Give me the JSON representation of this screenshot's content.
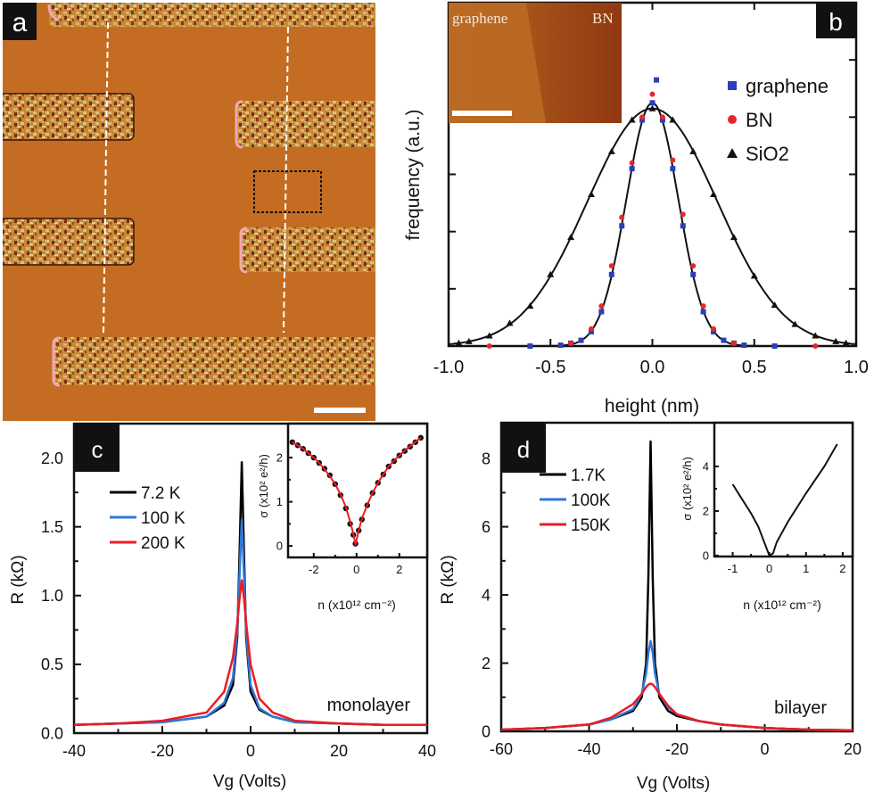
{
  "panel_a": {
    "label": "a",
    "description_colors": {
      "substrate": "#c46d22",
      "electrode": "#c9903a",
      "edge": "#f1a7b5"
    }
  },
  "chart_data": [
    {
      "id": "b",
      "type": "scatter",
      "panel_label": "b",
      "xlabel": "height (nm)",
      "ylabel": "frequency (a.u.)",
      "xlim": [
        -1.0,
        1.0
      ],
      "ylim": [
        0,
        1.2
      ],
      "x_ticks": [
        "-1.0",
        "-0.5",
        "0.0",
        "0.5",
        "1.0"
      ],
      "x_tick_values": [
        -1.0,
        -0.5,
        0.0,
        0.5,
        1.0
      ],
      "legend_position": "top-right",
      "inset_image": {
        "labels": [
          "graphene",
          "BN"
        ],
        "colors": {
          "graphene": "#b5621f",
          "BN": "#8a3310"
        }
      },
      "series": [
        {
          "name": "graphene",
          "marker": "square",
          "color": "#2b3fb8",
          "x": [
            -0.6,
            -0.45,
            -0.4,
            -0.35,
            -0.3,
            -0.25,
            -0.2,
            -0.15,
            -0.1,
            -0.05,
            0.0,
            0.02,
            0.05,
            0.1,
            0.15,
            0.2,
            0.25,
            0.3,
            0.35,
            0.4,
            0.45,
            0.6
          ],
          "y": [
            0.0,
            0.003,
            0.01,
            0.02,
            0.05,
            0.12,
            0.25,
            0.42,
            0.62,
            0.79,
            0.85,
            0.93,
            0.79,
            0.62,
            0.42,
            0.25,
            0.12,
            0.05,
            0.02,
            0.01,
            0.003,
            0.0
          ]
        },
        {
          "name": "BN",
          "marker": "circle",
          "color": "#e8262b",
          "x": [
            -0.8,
            -0.4,
            -0.3,
            -0.25,
            -0.2,
            -0.15,
            -0.1,
            -0.05,
            0.0,
            0.05,
            0.1,
            0.15,
            0.2,
            0.25,
            0.3,
            0.4,
            0.8
          ],
          "y": [
            0.0,
            0.01,
            0.06,
            0.14,
            0.28,
            0.45,
            0.64,
            0.8,
            0.88,
            0.8,
            0.65,
            0.46,
            0.28,
            0.14,
            0.06,
            0.01,
            0.0
          ]
        },
        {
          "name": "SiO2",
          "marker": "triangle",
          "color": "#111111",
          "x": [
            -0.95,
            -0.9,
            -0.8,
            -0.7,
            -0.6,
            -0.5,
            -0.4,
            -0.3,
            -0.2,
            -0.1,
            0.0,
            0.1,
            0.2,
            0.3,
            0.4,
            0.5,
            0.6,
            0.7,
            0.8,
            0.9,
            0.95
          ],
          "y": [
            0.01,
            0.016,
            0.036,
            0.08,
            0.14,
            0.25,
            0.38,
            0.53,
            0.68,
            0.79,
            0.83,
            0.79,
            0.68,
            0.53,
            0.38,
            0.245,
            0.143,
            0.076,
            0.036,
            0.016,
            0.01
          ]
        }
      ],
      "fits": [
        {
          "series": "graphene/BN",
          "center": 0.0,
          "sigma": 0.127,
          "amplitude": 0.85
        },
        {
          "series": "SiO2",
          "center": 0.0,
          "sigma": 0.32,
          "amplitude": 0.83
        }
      ]
    },
    {
      "id": "c",
      "type": "line",
      "panel_label": "c",
      "xlabel": "Vg (Volts)",
      "ylabel": "R (kΩ)",
      "annotation": "monolayer",
      "xlim": [
        -40,
        40
      ],
      "ylim": [
        0,
        2.25
      ],
      "x_ticks": [
        "-40",
        "-20",
        "0",
        "20",
        "40"
      ],
      "x_tick_values": [
        -40,
        -20,
        0,
        20,
        40
      ],
      "y_ticks": [
        "0.0",
        "0.5",
        "1.0",
        "1.5",
        "2.0"
      ],
      "y_tick_values": [
        0,
        0.5,
        1.0,
        1.5,
        2.0
      ],
      "legend_position": "top-left",
      "x": [
        -40,
        -30,
        -20,
        -10,
        -6,
        -4,
        -3,
        -2.5,
        -2,
        -1.5,
        -1,
        0,
        2,
        5,
        10,
        20,
        30,
        40
      ],
      "series": [
        {
          "name": "7.2 K",
          "color": "#000000",
          "values": [
            0.06,
            0.07,
            0.08,
            0.12,
            0.2,
            0.35,
            0.7,
            1.3,
            1.97,
            1.3,
            0.7,
            0.3,
            0.17,
            0.12,
            0.08,
            0.07,
            0.06,
            0.06
          ]
        },
        {
          "name": "100 K",
          "color": "#2f78d8",
          "values": [
            0.06,
            0.07,
            0.08,
            0.12,
            0.22,
            0.4,
            0.75,
            1.15,
            1.55,
            1.15,
            0.75,
            0.35,
            0.18,
            0.12,
            0.08,
            0.07,
            0.06,
            0.06
          ]
        },
        {
          "name": "200 K",
          "color": "#ec1c24",
          "values": [
            0.06,
            0.07,
            0.09,
            0.15,
            0.3,
            0.55,
            0.8,
            0.98,
            1.11,
            0.98,
            0.8,
            0.5,
            0.25,
            0.15,
            0.09,
            0.07,
            0.06,
            0.06
          ]
        }
      ],
      "inset": {
        "type": "scatter",
        "xlabel": "n (x10¹² cm⁻²)",
        "ylabel": "σ (x10² e²/h)",
        "xlim": [
          -3.2,
          3.3
        ],
        "ylim": [
          -0.26,
          2.77
        ],
        "x_ticks": [
          "-2",
          "0",
          "2"
        ],
        "x_tick_values": [
          -2,
          0,
          2
        ],
        "y_ticks": [
          "0",
          "1",
          "2"
        ],
        "y_tick_values": [
          0,
          1,
          2
        ],
        "x": [
          -3,
          -2.75,
          -2.5,
          -2.25,
          -2,
          -1.75,
          -1.5,
          -1.25,
          -1,
          -0.75,
          -0.5,
          -0.3,
          -0.15,
          -0.05,
          0.1,
          0.25,
          0.5,
          0.75,
          1,
          1.25,
          1.5,
          1.75,
          2,
          2.25,
          2.5,
          2.75,
          3
        ],
        "series": [
          {
            "name": "data",
            "marker": "circle",
            "color": "#111111",
            "values": [
              2.35,
              2.28,
              2.2,
              2.1,
              2.0,
              1.88,
              1.75,
              1.6,
              1.4,
              1.15,
              0.85,
              0.5,
              0.25,
              0.05,
              0.35,
              0.6,
              0.92,
              1.2,
              1.43,
              1.62,
              1.8,
              1.92,
              2.05,
              2.15,
              2.25,
              2.35,
              2.45
            ]
          },
          {
            "name": "fit",
            "marker": "line",
            "color": "#ec1c24",
            "values": [
              2.35,
              2.28,
              2.2,
              2.1,
              2.0,
              1.88,
              1.74,
              1.58,
              1.4,
              1.17,
              0.88,
              0.55,
              0.28,
              0.02,
              0.35,
              0.62,
              0.93,
              1.2,
              1.43,
              1.62,
              1.8,
              1.93,
              2.05,
              2.16,
              2.26,
              2.36,
              2.45
            ]
          }
        ]
      }
    },
    {
      "id": "d",
      "type": "line",
      "panel_label": "d",
      "xlabel": "Vg (Volts)",
      "ylabel": "R (kΩ)",
      "annotation": "bilayer",
      "xlim": [
        -60,
        20
      ],
      "ylim": [
        0,
        9.05
      ],
      "x_ticks": [
        "-60",
        "-40",
        "-20",
        "0",
        "20"
      ],
      "x_tick_values": [
        -60,
        -40,
        -20,
        0,
        20
      ],
      "y_ticks": [
        "0",
        "2",
        "4",
        "6",
        "8"
      ],
      "y_tick_values": [
        0,
        2,
        4,
        6,
        8
      ],
      "legend_position": "top-left",
      "x": [
        -60,
        -50,
        -40,
        -35,
        -30,
        -28,
        -27,
        -26.5,
        -26,
        -25.5,
        -25,
        -24,
        -22,
        -20,
        -15,
        -10,
        0,
        10,
        20
      ],
      "series": [
        {
          "name": "1.7K",
          "color": "#000000",
          "values": [
            0.05,
            0.1,
            0.2,
            0.35,
            0.6,
            1.0,
            2.0,
            4.5,
            8.5,
            4.5,
            2.0,
            1.0,
            0.6,
            0.45,
            0.3,
            0.2,
            0.1,
            0.05,
            0.03
          ]
        },
        {
          "name": "100K",
          "color": "#2f78d8",
          "values": [
            0.05,
            0.1,
            0.2,
            0.35,
            0.65,
            1.1,
            1.7,
            2.3,
            2.65,
            2.3,
            1.7,
            1.1,
            0.7,
            0.5,
            0.3,
            0.2,
            0.1,
            0.05,
            0.03
          ]
        },
        {
          "name": "150K",
          "color": "#ec1c24",
          "values": [
            0.05,
            0.1,
            0.2,
            0.4,
            0.8,
            1.1,
            1.3,
            1.37,
            1.4,
            1.37,
            1.3,
            1.1,
            0.75,
            0.5,
            0.3,
            0.2,
            0.1,
            0.05,
            0.03
          ]
        }
      ],
      "inset": {
        "type": "line",
        "xlabel": "n (x10¹² cm⁻²)",
        "ylabel": "σ (x10² e²/h)",
        "xlim": [
          -1.5,
          2.27
        ],
        "ylim": [
          -0.04,
          5.96
        ],
        "x_ticks": [
          "-1",
          "0",
          "1",
          "2"
        ],
        "x_tick_values": [
          -1,
          0,
          1,
          2
        ],
        "y_ticks": [
          "0",
          "2",
          "4"
        ],
        "y_tick_values": [
          0,
          2,
          4
        ],
        "x": [
          -1,
          -0.75,
          -0.5,
          -0.3,
          -0.15,
          0,
          0.1,
          0.2,
          0.5,
          1,
          1.5,
          1.85
        ],
        "series": [
          {
            "name": "data",
            "marker": "line",
            "color": "#111111",
            "values": [
              3.2,
              2.55,
              1.9,
              1.3,
              0.65,
              0,
              0.1,
              0.6,
              1.5,
              2.8,
              4.0,
              5.0
            ]
          }
        ]
      }
    }
  ]
}
